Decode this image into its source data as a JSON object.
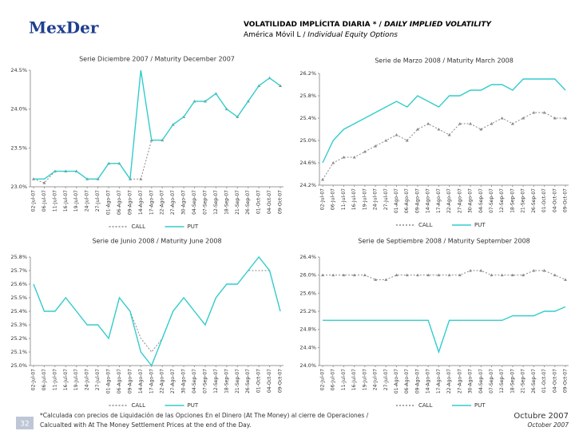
{
  "header": {
    "logo": "MexDer",
    "title_es": "VOLATILIDAD IMPLÍCITA DIARIA * / ",
    "title_en": "DAILY IMPLIED VOLATILITY",
    "subtitle_es": "América Móvil L / ",
    "subtitle_en": "Individual Equity Options"
  },
  "chart_data": [
    {
      "type": "line",
      "title": "Serie Diciembre 2007 / Maturity December 2007",
      "categories": [
        "02-Jul-07",
        "06-Jul-07",
        "11-Jul-07",
        "16-Jul-07",
        "19-Jul-07",
        "24-Jul-07",
        "27-Jul-07",
        "01-Ago-07",
        "06-Ago-07",
        "09-Ago-07",
        "14-Ago-07",
        "17-Ago-07",
        "22-Ago-07",
        "27-Ago-07",
        "30-Ago-07",
        "04-Sep-07",
        "07-Sep-07",
        "12-Sep-07",
        "18-Sep-07",
        "21-Sep-07",
        "26-Sep-07",
        "01-Oct-07",
        "04-Oct-07",
        "09-Oct-07"
      ],
      "series": [
        {
          "name": "CALL",
          "color": "#8a8a8a",
          "linestyle": "dashed",
          "marker": "triangle",
          "values": [
            23.1,
            23.05,
            23.2,
            23.2,
            23.2,
            23.1,
            23.1,
            23.3,
            23.3,
            23.1,
            23.1,
            23.6,
            23.6,
            23.8,
            23.9,
            24.1,
            24.1,
            24.2,
            24.0,
            23.9,
            24.1,
            24.3,
            24.4,
            24.3
          ]
        },
        {
          "name": "PUT",
          "color": "#33cccc",
          "linestyle": "solid",
          "marker": "none",
          "values": [
            23.1,
            23.1,
            23.2,
            23.2,
            23.2,
            23.1,
            23.1,
            23.3,
            23.3,
            23.1,
            24.5,
            23.6,
            23.6,
            23.8,
            23.9,
            24.1,
            24.1,
            24.2,
            24.0,
            23.9,
            24.1,
            24.3,
            24.4,
            24.3
          ]
        }
      ],
      "ylim": [
        23.0,
        24.5
      ],
      "yticks": [
        {
          "value": 23.0,
          "label": "23.0%"
        },
        {
          "value": 23.5,
          "label": "23.5%"
        },
        {
          "value": 24.0,
          "label": "24.0%"
        },
        {
          "value": 24.5,
          "label": "24.5%"
        }
      ],
      "grid": false
    },
    {
      "type": "line",
      "title": "Serie de Marzo 2008 / Maturity March 2008",
      "categories": [
        "02-Jul-07",
        "06-Jul-07",
        "11-Jul-07",
        "16-Jul-07",
        "19-Jul-07",
        "24-Jul-07",
        "27-Jul-07",
        "01-Ago-07",
        "06-Ago-07",
        "09-Ago-07",
        "14-Ago-07",
        "17-Ago-07",
        "22-Ago-07",
        "27-Ago-07",
        "30-Ago-07",
        "04-Sep-07",
        "07-Sep-07",
        "12-Sep-07",
        "18-Sep-07",
        "21-Sep-07",
        "26-Sep-07",
        "01-Oct-07",
        "04-Oct-07",
        "09-Oct-07"
      ],
      "series": [
        {
          "name": "CALL",
          "color": "#8a8a8a",
          "linestyle": "dashed",
          "marker": "triangle",
          "values": [
            24.3,
            24.6,
            24.7,
            24.7,
            24.8,
            24.9,
            25.0,
            25.1,
            25.0,
            25.2,
            25.3,
            25.2,
            25.1,
            25.3,
            25.3,
            25.2,
            25.3,
            25.4,
            25.3,
            25.4,
            25.5,
            25.5,
            25.4,
            25.4
          ]
        },
        {
          "name": "PUT",
          "color": "#33cccc",
          "linestyle": "solid",
          "marker": "none",
          "values": [
            24.6,
            25.0,
            25.2,
            25.3,
            25.4,
            25.5,
            25.6,
            25.7,
            25.6,
            25.8,
            25.7,
            25.6,
            25.8,
            25.8,
            25.9,
            25.9,
            26.0,
            26.0,
            25.9,
            26.1,
            26.1,
            26.1,
            26.1,
            25.9
          ]
        }
      ],
      "ylim": [
        24.2,
        26.2
      ],
      "yticks": [
        {
          "value": 24.2,
          "label": "24.2%"
        },
        {
          "value": 24.6,
          "label": "24.6%"
        },
        {
          "value": 25.0,
          "label": "25.0%"
        },
        {
          "value": 25.4,
          "label": "25.4%"
        },
        {
          "value": 25.8,
          "label": "25.8%"
        },
        {
          "value": 26.2,
          "label": "26.2%"
        }
      ],
      "grid": false
    },
    {
      "type": "line",
      "title": "Serie de Junio 2008 / Maturity June 2008",
      "categories": [
        "02-Jul-07",
        "06-Jul-07",
        "11-Jul-07",
        "16-Jul-07",
        "19-Jul-07",
        "24-Jul-07",
        "27-Jul-07",
        "01-Ago-07",
        "06-Ago-07",
        "09-Ago-07",
        "14-Ago-07",
        "17-Ago-07",
        "22-Ago-07",
        "27-Ago-07",
        "30-Ago-07",
        "04-Sep-07",
        "07-Sep-07",
        "12-Sep-07",
        "18-Sep-07",
        "21-Sep-07",
        "26-Sep-07",
        "01-Oct-07",
        "04-Oct-07",
        "09-Oct-07"
      ],
      "series": [
        {
          "name": "CALL",
          "color": "#8a8a8a",
          "linestyle": "dashed",
          "marker": "none",
          "values": [
            25.6,
            25.4,
            25.4,
            25.5,
            25.4,
            25.3,
            25.3,
            25.2,
            25.5,
            25.4,
            25.2,
            25.1,
            25.2,
            25.4,
            25.5,
            25.4,
            25.3,
            25.5,
            25.6,
            25.6,
            25.7,
            25.7,
            25.7,
            25.4
          ]
        },
        {
          "name": "PUT",
          "color": "#33cccc",
          "linestyle": "solid",
          "marker": "none",
          "values": [
            25.6,
            25.4,
            25.4,
            25.5,
            25.4,
            25.3,
            25.3,
            25.2,
            25.5,
            25.4,
            25.1,
            25.0,
            25.2,
            25.4,
            25.5,
            25.4,
            25.3,
            25.5,
            25.6,
            25.6,
            25.7,
            25.8,
            25.7,
            25.4
          ]
        }
      ],
      "ylim": [
        25.0,
        25.8
      ],
      "yticks": [
        {
          "value": 25.0,
          "label": "25.0%"
        },
        {
          "value": 25.1,
          "label": "25.1%"
        },
        {
          "value": 25.2,
          "label": "25.2%"
        },
        {
          "value": 25.3,
          "label": "25.3%"
        },
        {
          "value": 25.4,
          "label": "25.4%"
        },
        {
          "value": 25.5,
          "label": "25.5%"
        },
        {
          "value": 25.6,
          "label": "25.6%"
        },
        {
          "value": 25.7,
          "label": "25.7%"
        },
        {
          "value": 25.8,
          "label": "25.8%"
        }
      ],
      "grid": false
    },
    {
      "type": "line",
      "title": "Serie de Septiembre 2008 / Maturity September 2008",
      "categories": [
        "02-Jul-07",
        "06-Jul-07",
        "11-Jul-07",
        "16-Jul-07",
        "19-Jul-07",
        "24-Jul-07",
        "27-Jul-07",
        "01-Ago-07",
        "06-Ago-07",
        "09-Ago-07",
        "14-Ago-07",
        "17-Ago-07",
        "22-Ago-07",
        "27-Ago-07",
        "30-Ago-07",
        "04-Sep-07",
        "07-Sep-07",
        "12-Sep-07",
        "18-Sep-07",
        "21-Sep-07",
        "26-Sep-07",
        "01-Oct-07",
        "04-Oct-07",
        "09-Oct-07"
      ],
      "series": [
        {
          "name": "CALL",
          "color": "#8a8a8a",
          "linestyle": "dashed",
          "marker": "triangle",
          "values": [
            26.0,
            26.0,
            26.0,
            26.0,
            26.0,
            25.9,
            25.9,
            26.0,
            26.0,
            26.0,
            26.0,
            26.0,
            26.0,
            26.0,
            26.1,
            26.1,
            26.0,
            26.0,
            26.0,
            26.0,
            26.1,
            26.1,
            26.0,
            25.9
          ]
        },
        {
          "name": "PUT",
          "color": "#33cccc",
          "linestyle": "solid",
          "marker": "none",
          "values": [
            25.0,
            25.0,
            25.0,
            25.0,
            25.0,
            25.0,
            25.0,
            25.0,
            25.0,
            25.0,
            25.0,
            24.3,
            25.0,
            25.0,
            25.0,
            25.0,
            25.0,
            25.0,
            25.1,
            25.1,
            25.1,
            25.2,
            25.2,
            25.3
          ]
        }
      ],
      "ylim": [
        24.0,
        26.4
      ],
      "yticks": [
        {
          "value": 24.0,
          "label": "24.0%"
        },
        {
          "value": 24.4,
          "label": "24.4%"
        },
        {
          "value": 24.8,
          "label": "24.8%"
        },
        {
          "value": 25.2,
          "label": "25.2%"
        },
        {
          "value": 25.6,
          "label": "25.6%"
        },
        {
          "value": 26.0,
          "label": "26.0%"
        },
        {
          "value": 26.4,
          "label": "26.4%"
        }
      ],
      "grid": false
    }
  ],
  "footer": {
    "page": "32",
    "note_es": "*Calculada con precios de Liquidación de las Opciones En el Dinero (At The Money) al cierre de Operaciones /",
    "note_en": "Calcualted with At The Money Settlement Prices at the end of the Day.",
    "date_es": "Octubre 2007",
    "date_en": "October 2007"
  }
}
